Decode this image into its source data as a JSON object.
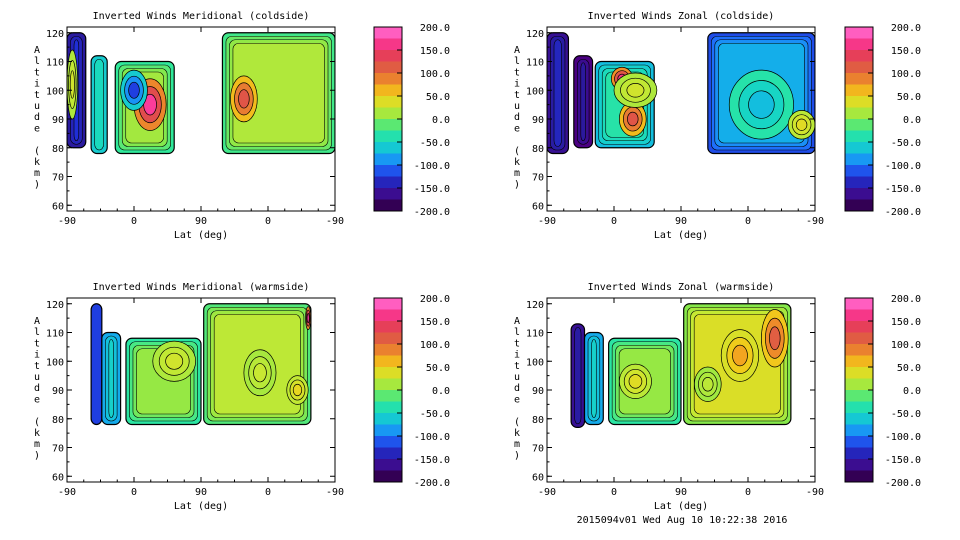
{
  "footer": "2015094v01 Wed Aug 10 10:22:38 2016",
  "chart_data": [
    {
      "type": "heatmap",
      "title": "Inverted Winds Meridional (coldside)",
      "xlabel": "Lat (deg)",
      "ylabel": "Altitude (km)",
      "xticks": [
        "-90",
        "0",
        "90",
        "0",
        "-90"
      ],
      "yticks": [
        "60",
        "70",
        "80",
        "90",
        "100",
        "110",
        "120"
      ],
      "ylim": [
        58,
        122
      ],
      "colorbar": {
        "range": [
          -200,
          200
        ],
        "ticks": [
          "200.0",
          "150.0",
          "100.0",
          "50.0",
          "0.0",
          "-50.0",
          "-100.0",
          "-150.0",
          "-200.0"
        ]
      },
      "blocks": [
        {
          "xr": [
            0.0,
            0.07
          ],
          "yr": [
            80,
            120
          ],
          "v": -150
        },
        {
          "xr": [
            0.09,
            0.15
          ],
          "yr": [
            78,
            112
          ],
          "v": -60
        },
        {
          "xr": [
            0.18,
            0.4
          ],
          "yr": [
            78,
            110
          ],
          "v": -25
        },
        {
          "xr": [
            0.58,
            1.0
          ],
          "yr": [
            78,
            120
          ],
          "v": -20
        }
      ],
      "blobs": [
        {
          "c": [
            0.31,
            95
          ],
          "r": [
            0.06,
            9
          ],
          "v": 170
        },
        {
          "c": [
            0.25,
            100
          ],
          "r": [
            0.05,
            7
          ],
          "v": -120
        },
        {
          "c": [
            0.66,
            97
          ],
          "r": [
            0.05,
            8
          ],
          "v": 120
        },
        {
          "c": [
            0.02,
            102
          ],
          "r": [
            0.02,
            12
          ],
          "v": 30
        }
      ]
    },
    {
      "type": "heatmap",
      "title": "Inverted Winds Zonal (coldside)",
      "xlabel": "Lat (deg)",
      "ylabel": "Altitude (km)",
      "xticks": [
        "-90",
        "0",
        "90",
        "0",
        "-90"
      ],
      "yticks": [
        "60",
        "70",
        "80",
        "90",
        "100",
        "110",
        "120"
      ],
      "ylim": [
        58,
        122
      ],
      "colorbar": {
        "range": [
          -200,
          200
        ],
        "ticks": [
          "200.0",
          "150.0",
          "100.0",
          "50.0",
          "0.0",
          "-50.0",
          "-100.0",
          "-150.0",
          "-200.0"
        ]
      },
      "blocks": [
        {
          "xr": [
            0.0,
            0.08
          ],
          "yr": [
            78,
            120
          ],
          "v": -160
        },
        {
          "xr": [
            0.1,
            0.17
          ],
          "yr": [
            80,
            112
          ],
          "v": -175
        },
        {
          "xr": [
            0.18,
            0.4
          ],
          "yr": [
            80,
            110
          ],
          "v": -70
        },
        {
          "xr": [
            0.6,
            1.0
          ],
          "yr": [
            78,
            120
          ],
          "v": -115
        }
      ],
      "blobs": [
        {
          "c": [
            0.32,
            90
          ],
          "r": [
            0.05,
            6
          ],
          "v": 120
        },
        {
          "c": [
            0.28,
            104
          ],
          "r": [
            0.04,
            4
          ],
          "v": 160
        },
        {
          "c": [
            0.33,
            100
          ],
          "r": [
            0.08,
            6
          ],
          "v": 30
        },
        {
          "c": [
            0.8,
            95
          ],
          "r": [
            0.12,
            12
          ],
          "v": -70
        },
        {
          "c": [
            0.95,
            88
          ],
          "r": [
            0.05,
            5
          ],
          "v": 40
        }
      ]
    },
    {
      "type": "heatmap",
      "title": "Inverted Winds Meridional (warmside)",
      "xlabel": "Lat (deg)",
      "ylabel": "Altitude (km)",
      "xticks": [
        "-90",
        "0",
        "90",
        "0",
        "-90"
      ],
      "yticks": [
        "60",
        "70",
        "80",
        "90",
        "100",
        "110",
        "120"
      ],
      "ylim": [
        58,
        122
      ],
      "colorbar": {
        "range": [
          -200,
          200
        ],
        "ticks": [
          "200.0",
          "150.0",
          "100.0",
          "50.0",
          "0.0",
          "-50.0",
          "-100.0",
          "-150.0",
          "-200.0"
        ]
      },
      "blocks": [
        {
          "xr": [
            0.09,
            0.13
          ],
          "yr": [
            78,
            120
          ],
          "v": -120
        },
        {
          "xr": [
            0.13,
            0.2
          ],
          "yr": [
            78,
            110
          ],
          "v": -80
        },
        {
          "xr": [
            0.22,
            0.5
          ],
          "yr": [
            78,
            108
          ],
          "v": -30
        },
        {
          "xr": [
            0.51,
            0.91
          ],
          "yr": [
            78,
            120
          ],
          "v": -15
        }
      ],
      "blobs": [
        {
          "c": [
            0.4,
            100
          ],
          "r": [
            0.08,
            7
          ],
          "v": 30
        },
        {
          "c": [
            0.72,
            96
          ],
          "r": [
            0.06,
            8
          ],
          "v": 25
        },
        {
          "c": [
            0.86,
            90
          ],
          "r": [
            0.04,
            5
          ],
          "v": 45
        },
        {
          "c": [
            0.9,
            115
          ],
          "r": [
            0.01,
            4
          ],
          "v": 170
        }
      ]
    },
    {
      "type": "heatmap",
      "title": "Inverted Winds Zonal (warmside)",
      "xlabel": "Lat (deg)",
      "ylabel": "Altitude (km)",
      "xticks": [
        "-90",
        "0",
        "90",
        "0",
        "-90"
      ],
      "yticks": [
        "60",
        "70",
        "80",
        "90",
        "100",
        "110",
        "120"
      ],
      "ylim": [
        58,
        122
      ],
      "colorbar": {
        "range": [
          -200,
          200
        ],
        "ticks": [
          "200.0",
          "150.0",
          "100.0",
          "50.0",
          "0.0",
          "-50.0",
          "-100.0",
          "-150.0",
          "-200.0"
        ]
      },
      "blocks": [
        {
          "xr": [
            0.09,
            0.14
          ],
          "yr": [
            77,
            113
          ],
          "v": -160
        },
        {
          "xr": [
            0.14,
            0.21
          ],
          "yr": [
            78,
            110
          ],
          "v": -80
        },
        {
          "xr": [
            0.23,
            0.5
          ],
          "yr": [
            78,
            108
          ],
          "v": -30
        },
        {
          "xr": [
            0.51,
            0.91
          ],
          "yr": [
            78,
            120
          ],
          "v": 0
        }
      ],
      "blobs": [
        {
          "c": [
            0.33,
            93
          ],
          "r": [
            0.06,
            6
          ],
          "v": 40
        },
        {
          "c": [
            0.72,
            102
          ],
          "r": [
            0.07,
            9
          ],
          "v": 70
        },
        {
          "c": [
            0.85,
            108
          ],
          "r": [
            0.05,
            10
          ],
          "v": 110
        },
        {
          "c": [
            0.6,
            92
          ],
          "r": [
            0.05,
            6
          ],
          "v": 20
        }
      ]
    }
  ]
}
